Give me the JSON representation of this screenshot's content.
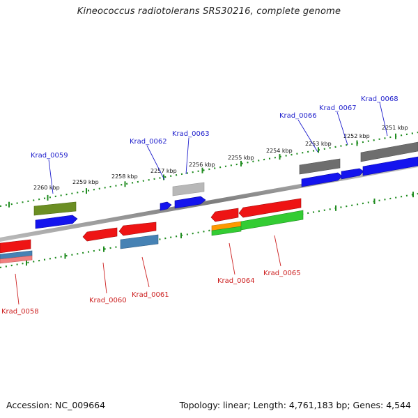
{
  "title": "Kineococcus radiotolerans SRS30216, complete genome",
  "footer": {
    "accession": "Accession: NC_009664",
    "summary": "Topology: linear; Length: 4,761,183 bp; Genes: 4,544"
  },
  "scale_ticks": [
    "2260 kbp",
    "2259 kbp",
    "2258 kbp",
    "2257 kbp",
    "2256 kbp",
    "2255 kbp",
    "2254 kbp",
    "2253 kbp",
    "2252 kbp",
    "2251 kbp"
  ],
  "genes_top": [
    "Krad_0059",
    "Krad_0062",
    "Krad_0063",
    "Krad_0066",
    "Krad_0067",
    "Krad_0068"
  ],
  "genes_bottom": [
    "Krad_0058",
    "Krad_0060",
    "Krad_0061",
    "Krad_0064",
    "Krad_0065"
  ],
  "colors": {
    "forward_strand_label": "#1e1ecc",
    "reverse_strand_label": "#cc1e1e",
    "tick_green": "#1f8c1f",
    "backbone": "#8a8a8a"
  }
}
